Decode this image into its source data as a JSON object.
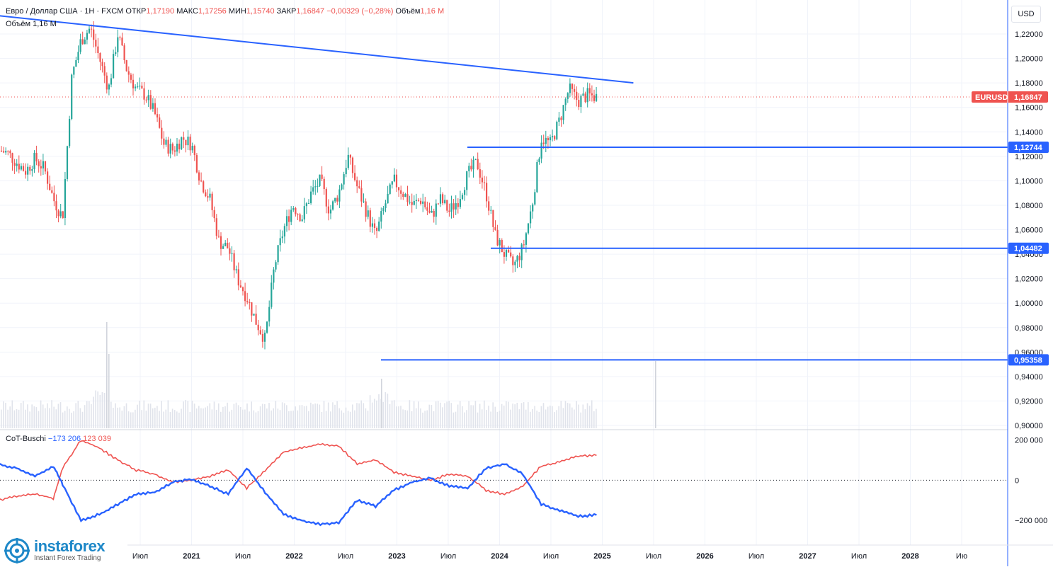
{
  "header": {
    "symbol_title": "Евро / Доллар США · 1Н · FXCM",
    "open_label": "ОТКР",
    "open_value": "1,17190",
    "high_label": "МАКС",
    "high_value": "1,17256",
    "low_label": "МИН",
    "low_value": "1,15740",
    "close_label": "ЗАКР",
    "close_value": "1,16847",
    "change_value": "−0,00329 (−0,28%)",
    "volume_label": "Объём",
    "volume_value": "1,16 M",
    "volume_row_label": "Объём",
    "volume_row_value": "1,16 M"
  },
  "currency_button": "USD",
  "price_axis": {
    "ticks": [
      "1,22000",
      "1,20000",
      "1,18000",
      "1,16000",
      "1,14000",
      "1,12000",
      "1,10000",
      "1,08000",
      "1,06000",
      "1,04000",
      "1,02000",
      "1,00000",
      "0,98000",
      "0,96000",
      "0,94000",
      "0,92000",
      "0,90000"
    ],
    "tick_values": [
      1.22,
      1.2,
      1.18,
      1.16,
      1.14,
      1.12,
      1.1,
      1.08,
      1.06,
      1.04,
      1.02,
      1.0,
      0.98,
      0.96,
      0.94,
      0.92,
      0.9
    ]
  },
  "symbol_tag": {
    "name": "EURUSD",
    "price": "1,16847"
  },
  "levels": [
    {
      "label": "1,12744",
      "value": 1.12744
    },
    {
      "label": "1,04482",
      "value": 1.04482
    },
    {
      "label": "0,95358",
      "value": 0.95358
    }
  ],
  "indicator": {
    "name": "CoT-Buschi",
    "blue_value": "−173 206",
    "red_value": "123 039",
    "ticks": [
      "200 000",
      "0",
      "−200 000"
    ],
    "tick_values": [
      200000,
      0,
      -200000
    ]
  },
  "time_axis": {
    "labels": [
      "Июл",
      "2021",
      "Июл",
      "2022",
      "Июл",
      "2023",
      "Июл",
      "2024",
      "Июл",
      "2025",
      "Июл",
      "2026",
      "Июл",
      "2027",
      "Июл",
      "2028",
      "Ию"
    ],
    "bold": [
      false,
      true,
      false,
      true,
      false,
      true,
      false,
      true,
      false,
      true,
      false,
      true,
      false,
      true,
      false,
      true,
      false
    ]
  },
  "logo": {
    "name": "instaforex",
    "tagline": "Instant Forex Trading"
  },
  "colors": {
    "up": "#26a69a",
    "down": "#ef5350",
    "trend": "#2962ff",
    "cot_long": "#2962ff",
    "cot_short": "#ef5350",
    "tag_red": "#ef5350",
    "tag_blue": "#2962ff"
  },
  "chart_data": {
    "type": "candlestick",
    "symbol": "EURUSD",
    "price_range": [
      0.9,
      1.22
    ],
    "price_path": [
      [
        "2020-05",
        1.125
      ],
      [
        "2020-06",
        1.123
      ],
      [
        "2020-07",
        1.115
      ],
      [
        "2020-08",
        1.108
      ],
      [
        "2020-09",
        1.118
      ],
      [
        "2020-10",
        1.11
      ],
      [
        "2020-11",
        1.085
      ],
      [
        "2020-12",
        1.07
      ],
      [
        "2021-01",
        1.185
      ],
      [
        "2021-02",
        1.215
      ],
      [
        "2021-03",
        1.225
      ],
      [
        "2021-04",
        1.2
      ],
      [
        "2021-05",
        1.175
      ],
      [
        "2021-06",
        1.22
      ],
      [
        "2021-07",
        1.19
      ],
      [
        "2021-08",
        1.175
      ],
      [
        "2021-09",
        1.17
      ],
      [
        "2021-10",
        1.155
      ],
      [
        "2021-11",
        1.13
      ],
      [
        "2021-12",
        1.125
      ],
      [
        "2022-01",
        1.135
      ],
      [
        "2022-02",
        1.13
      ],
      [
        "2022-03",
        1.1
      ],
      [
        "2022-04",
        1.085
      ],
      [
        "2022-05",
        1.05
      ],
      [
        "2022-06",
        1.045
      ],
      [
        "2022-07",
        1.02
      ],
      [
        "2022-08",
        1.005
      ],
      [
        "2022-09",
        0.985
      ],
      [
        "2022-10",
        0.97
      ],
      [
        "2022-11",
        1.03
      ],
      [
        "2022-12",
        1.06
      ],
      [
        "2023-01",
        1.08
      ],
      [
        "2023-02",
        1.07
      ],
      [
        "2023-03",
        1.09
      ],
      [
        "2023-04",
        1.1
      ],
      [
        "2023-05",
        1.075
      ],
      [
        "2023-06",
        1.09
      ],
      [
        "2023-07",
        1.12
      ],
      [
        "2023-08",
        1.095
      ],
      [
        "2023-09",
        1.075
      ],
      [
        "2023-10",
        1.055
      ],
      [
        "2023-11",
        1.08
      ],
      [
        "2023-12",
        1.1
      ],
      [
        "2024-01",
        1.09
      ],
      [
        "2024-02",
        1.08
      ],
      [
        "2024-03",
        1.085
      ],
      [
        "2024-04",
        1.07
      ],
      [
        "2024-05",
        1.085
      ],
      [
        "2024-06",
        1.075
      ],
      [
        "2024-07",
        1.085
      ],
      [
        "2024-08",
        1.105
      ],
      [
        "2024-09",
        1.115
      ],
      [
        "2024-10",
        1.09
      ],
      [
        "2024-11",
        1.055
      ],
      [
        "2024-12",
        1.04
      ],
      [
        "2025-01",
        1.03
      ],
      [
        "2025-02",
        1.045
      ],
      [
        "2025-03",
        1.08
      ],
      [
        "2025-04",
        1.135
      ],
      [
        "2025-05",
        1.13
      ],
      [
        "2025-06",
        1.15
      ],
      [
        "2025-07",
        1.175
      ],
      [
        "2025-08",
        1.165
      ],
      [
        "2025-09",
        1.17
      ],
      [
        "2025-10",
        1.1685
      ]
    ],
    "trendline": {
      "from": [
        "2020-05",
        1.235
      ],
      "to": [
        "2026-02",
        1.18
      ]
    },
    "horizontal_levels": [
      1.12744,
      1.04482,
      0.95358
    ],
    "last_price": 1.16847,
    "cot_buschi": {
      "range": [
        -270000,
        230000
      ],
      "blue": [
        [
          "2020-05",
          80000
        ],
        [
          "2020-07",
          60000
        ],
        [
          "2020-09",
          20000
        ],
        [
          "2020-11",
          70000
        ],
        [
          "2020-12",
          -20000
        ],
        [
          "2021-02",
          -200000
        ],
        [
          "2021-04",
          -170000
        ],
        [
          "2021-06",
          -120000
        ],
        [
          "2021-08",
          -70000
        ],
        [
          "2021-10",
          -60000
        ],
        [
          "2021-12",
          -10000
        ],
        [
          "2022-02",
          5000
        ],
        [
          "2022-04",
          -30000
        ],
        [
          "2022-06",
          -70000
        ],
        [
          "2022-08",
          60000
        ],
        [
          "2022-10",
          -60000
        ],
        [
          "2022-12",
          -170000
        ],
        [
          "2023-02",
          -200000
        ],
        [
          "2023-04",
          -220000
        ],
        [
          "2023-06",
          -210000
        ],
        [
          "2023-08",
          -100000
        ],
        [
          "2023-10",
          -130000
        ],
        [
          "2023-12",
          -50000
        ],
        [
          "2024-02",
          -10000
        ],
        [
          "2024-04",
          10000
        ],
        [
          "2024-06",
          -30000
        ],
        [
          "2024-08",
          -40000
        ],
        [
          "2024-10",
          60000
        ],
        [
          "2024-12",
          80000
        ],
        [
          "2025-02",
          30000
        ],
        [
          "2025-04",
          -120000
        ],
        [
          "2025-06",
          -150000
        ],
        [
          "2025-08",
          -180000
        ],
        [
          "2025-10",
          -173206
        ]
      ],
      "red": [
        [
          "2020-05",
          -100000
        ],
        [
          "2020-07",
          -80000
        ],
        [
          "2020-09",
          -70000
        ],
        [
          "2020-11",
          -90000
        ],
        [
          "2020-12",
          60000
        ],
        [
          "2021-02",
          200000
        ],
        [
          "2021-04",
          160000
        ],
        [
          "2021-06",
          100000
        ],
        [
          "2021-08",
          50000
        ],
        [
          "2021-10",
          30000
        ],
        [
          "2021-12",
          -10000
        ],
        [
          "2022-02",
          0
        ],
        [
          "2022-04",
          20000
        ],
        [
          "2022-06",
          50000
        ],
        [
          "2022-08",
          -40000
        ],
        [
          "2022-10",
          50000
        ],
        [
          "2022-12",
          140000
        ],
        [
          "2023-02",
          160000
        ],
        [
          "2023-04",
          180000
        ],
        [
          "2023-06",
          170000
        ],
        [
          "2023-08",
          80000
        ],
        [
          "2023-10",
          100000
        ],
        [
          "2023-12",
          40000
        ],
        [
          "2024-02",
          20000
        ],
        [
          "2024-04",
          0
        ],
        [
          "2024-06",
          30000
        ],
        [
          "2024-08",
          20000
        ],
        [
          "2024-10",
          -50000
        ],
        [
          "2024-12",
          -70000
        ],
        [
          "2025-02",
          -30000
        ],
        [
          "2025-04",
          70000
        ],
        [
          "2025-06",
          90000
        ],
        [
          "2025-08",
          120000
        ],
        [
          "2025-10",
          123039
        ]
      ]
    }
  }
}
